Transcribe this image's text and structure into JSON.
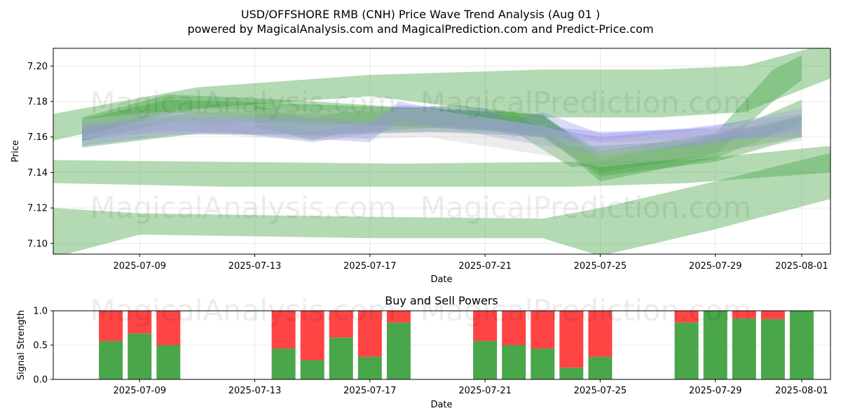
{
  "header": {
    "title_line1": "USD/OFFSHORE RMB (CNH) Price Wave Trend Analysis (Aug 01 )",
    "title_line2": "powered by MagicalAnalysis.com and MagicalPrediction.com and Predict-Price.com"
  },
  "watermarks": [
    "MagicalAnalysis.com",
    "MagicalPrediction.com"
  ],
  "colors": {
    "band_green": "#4aa64a",
    "band_blue": "#7a7ae6",
    "band_gray": "#c8c8c8",
    "buy_green": "#4aa64a",
    "sell_red": "#ff4444"
  },
  "chart_data": [
    {
      "type": "area",
      "xlabel": "Date",
      "ylabel": "Price",
      "ylim": [
        7.094,
        7.21
      ],
      "xlim": [
        "2025-07-06",
        "2025-08-02"
      ],
      "grid": true,
      "x_ticks": [
        "2025-07-09",
        "2025-07-13",
        "2025-07-17",
        "2025-07-21",
        "2025-07-25",
        "2025-07-29",
        "2025-08-01"
      ],
      "y_ticks": [
        7.1,
        7.12,
        7.14,
        7.16,
        7.18,
        7.2
      ],
      "y_tick_labels": [
        "7.10",
        "7.12",
        "7.14",
        "7.16",
        "7.18",
        "7.20"
      ],
      "series": [
        {
          "color": "green",
          "points": [
            [
              "2025-07-06",
              7.158,
              7.173
            ],
            [
              "2025-07-11",
              7.176,
              7.188
            ],
            [
              "2025-07-17",
              7.183,
              7.195
            ],
            [
              "2025-07-23",
              7.171,
              7.198
            ],
            [
              "2025-07-27",
              7.171,
              7.198
            ],
            [
              "2025-07-30",
              7.174,
              7.2
            ],
            [
              "2025-08-02",
              7.193,
              7.213
            ]
          ]
        },
        {
          "color": "green",
          "points": [
            [
              "2025-07-06",
              7.134,
              7.147
            ],
            [
              "2025-07-12",
              7.132,
              7.146
            ],
            [
              "2025-07-18",
              7.132,
              7.145
            ],
            [
              "2025-07-24",
              7.132,
              7.146
            ],
            [
              "2025-07-28",
              7.134,
              7.147
            ],
            [
              "2025-08-02",
              7.14,
              7.155
            ]
          ]
        },
        {
          "color": "green",
          "points": [
            [
              "2025-07-06",
              7.092,
              7.12
            ],
            [
              "2025-07-09",
              7.105,
              7.117
            ],
            [
              "2025-07-17",
              7.103,
              7.115
            ],
            [
              "2025-07-23",
              7.103,
              7.114
            ],
            [
              "2025-07-25",
              7.093,
              7.12
            ],
            [
              "2025-07-29",
              7.108,
              7.135
            ],
            [
              "2025-08-02",
              7.125,
              7.151
            ]
          ]
        },
        {
          "color": "green",
          "points": [
            [
              "2025-07-07",
              7.158,
              7.17
            ],
            [
              "2025-07-10",
              7.168,
              7.181
            ],
            [
              "2025-07-14",
              7.168,
              7.179
            ],
            [
              "2025-07-19",
              7.166,
              7.176
            ],
            [
              "2025-07-23",
              7.162,
              7.173
            ],
            [
              "2025-07-25",
              7.135,
              7.147
            ],
            [
              "2025-07-29",
              7.148,
              7.16
            ],
            [
              "2025-08-01",
              7.168,
              7.181
            ]
          ]
        },
        {
          "color": "green",
          "points": [
            [
              "2025-07-07",
              7.154,
              7.166
            ],
            [
              "2025-07-11",
              7.162,
              7.174
            ],
            [
              "2025-07-15",
              7.161,
              7.173
            ],
            [
              "2025-07-19",
              7.163,
              7.175
            ],
            [
              "2025-07-23",
              7.16,
              7.172
            ],
            [
              "2025-07-25",
              7.14,
              7.152
            ],
            [
              "2025-07-29",
              7.15,
              7.162
            ],
            [
              "2025-07-31",
              7.18,
              7.198
            ],
            [
              "2025-08-01",
              7.192,
              7.206
            ]
          ]
        },
        {
          "color": "green",
          "points": [
            [
              "2025-07-07",
              7.16,
              7.171
            ],
            [
              "2025-07-10",
              7.174,
              7.184
            ],
            [
              "2025-07-14",
              7.17,
              7.181
            ],
            [
              "2025-07-18",
              7.166,
              7.177
            ],
            [
              "2025-07-22",
              7.163,
              7.174
            ],
            [
              "2025-07-24",
              7.143,
              7.154
            ],
            [
              "2025-07-28",
              7.148,
              7.158
            ],
            [
              "2025-08-01",
              7.16,
              7.172
            ]
          ]
        },
        {
          "color": "green",
          "points": [
            [
              "2025-07-13",
              7.166,
              7.178
            ],
            [
              "2025-07-15",
              7.158,
              7.17
            ],
            [
              "2025-07-16",
              7.162,
              7.174
            ],
            [
              "2025-07-20",
              7.166,
              7.178
            ],
            [
              "2025-07-23",
              7.16,
              7.172
            ],
            [
              "2025-07-25",
              7.138,
              7.15
            ],
            [
              "2025-07-29",
              7.146,
              7.158
            ],
            [
              "2025-08-01",
              7.16,
              7.172
            ]
          ]
        },
        {
          "color": "blue",
          "points": [
            [
              "2025-07-07",
              7.155,
              7.165
            ],
            [
              "2025-07-10",
              7.161,
              7.171
            ],
            [
              "2025-07-14",
              7.162,
              7.172
            ],
            [
              "2025-07-17",
              7.159,
              7.169
            ],
            [
              "2025-07-18",
              7.168,
              7.178
            ],
            [
              "2025-07-21",
              7.166,
              7.176
            ],
            [
              "2025-07-22",
              7.16,
              7.17
            ],
            [
              "2025-07-23",
              7.164,
              7.174
            ],
            [
              "2025-07-25",
              7.152,
              7.162
            ],
            [
              "2025-07-28",
              7.155,
              7.165
            ],
            [
              "2025-08-01",
              7.163,
              7.173
            ]
          ]
        },
        {
          "color": "blue",
          "points": [
            [
              "2025-07-07",
              7.158,
              7.168
            ],
            [
              "2025-07-10",
              7.164,
              7.174
            ],
            [
              "2025-07-14",
              7.16,
              7.17
            ],
            [
              "2025-07-17",
              7.157,
              7.167
            ],
            [
              "2025-07-18",
              7.17,
              7.18
            ],
            [
              "2025-07-22",
              7.158,
              7.168
            ],
            [
              "2025-07-25",
              7.15,
              7.16
            ],
            [
              "2025-07-29",
              7.156,
              7.166
            ],
            [
              "2025-08-01",
              7.166,
              7.176
            ]
          ]
        },
        {
          "color": "blue",
          "points": [
            [
              "2025-07-07",
              7.16,
              7.166
            ],
            [
              "2025-07-12",
              7.163,
              7.169
            ],
            [
              "2025-07-15",
              7.157,
              7.163
            ],
            [
              "2025-07-17",
              7.162,
              7.168
            ],
            [
              "2025-07-21",
              7.163,
              7.169
            ],
            [
              "2025-07-25",
              7.157,
              7.163
            ],
            [
              "2025-08-01",
              7.16,
              7.166
            ]
          ]
        },
        {
          "color": "gray",
          "points": [
            [
              "2025-07-07",
              7.159,
              7.17
            ],
            [
              "2025-07-11",
              7.162,
              7.176
            ],
            [
              "2025-07-15",
              7.158,
              7.175
            ],
            [
              "2025-07-19",
              7.16,
              7.176
            ],
            [
              "2025-07-23",
              7.15,
              7.166
            ],
            [
              "2025-07-25",
              7.143,
              7.158
            ],
            [
              "2025-07-29",
              7.15,
              7.165
            ],
            [
              "2025-08-01",
              7.158,
              7.176
            ]
          ]
        }
      ]
    },
    {
      "type": "bar",
      "title": "Buy and Sell Powers",
      "xlabel": "Date",
      "ylabel": "Signal Strength",
      "ylim": [
        0,
        1.0
      ],
      "grid": true,
      "x_ticks": [
        "2025-07-09",
        "2025-07-13",
        "2025-07-17",
        "2025-07-21",
        "2025-07-25",
        "2025-07-29",
        "2025-08-01"
      ],
      "y_ticks": [
        0.0,
        0.5,
        1.0
      ],
      "y_tick_labels": [
        "0.0",
        "0.5",
        "1.0"
      ],
      "categories": [
        "2025-07-08",
        "2025-07-09",
        "2025-07-10",
        "2025-07-14",
        "2025-07-15",
        "2025-07-16",
        "2025-07-17",
        "2025-07-18",
        "2025-07-21",
        "2025-07-22",
        "2025-07-23",
        "2025-07-24",
        "2025-07-25",
        "2025-07-28",
        "2025-07-29",
        "2025-07-30",
        "2025-07-31",
        "2025-08-01"
      ],
      "series": [
        {
          "color": "green",
          "values": [
            0.56,
            0.67,
            0.5,
            0.45,
            0.28,
            0.61,
            0.33,
            0.83,
            0.56,
            0.5,
            0.45,
            0.17,
            0.33,
            0.83,
            1.0,
            0.89,
            0.88,
            1.0
          ]
        },
        {
          "color": "red",
          "values": [
            0.44,
            0.33,
            0.5,
            0.55,
            0.72,
            0.39,
            0.67,
            0.17,
            0.44,
            0.5,
            0.55,
            0.83,
            0.67,
            0.17,
            0.0,
            0.11,
            0.12,
            0.0
          ]
        }
      ]
    }
  ]
}
